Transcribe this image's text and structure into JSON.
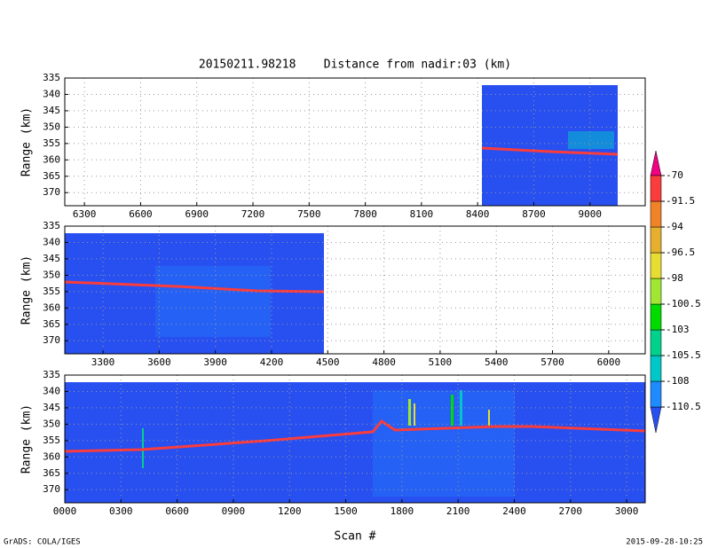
{
  "title": "20150211.98218    Distance from nadir:03 (km)",
  "x_label": "Scan #",
  "footer_left": "GrADS: COLA/IGES",
  "footer_right": "2015-09-28-10:25",
  "chart_data": [
    {
      "type": "heatmap",
      "y_label": "Range (km)",
      "xlim": [
        6195,
        9295
      ],
      "ylim": [
        335,
        374
      ],
      "xticks": [
        6300,
        6600,
        6900,
        7200,
        7500,
        7800,
        8100,
        8400,
        8700,
        9000
      ],
      "yticks": [
        335,
        340,
        345,
        350,
        355,
        360,
        365,
        370
      ],
      "grid": true
    },
    {
      "type": "heatmap",
      "y_label": "Range (km)",
      "xlim": [
        3096,
        6195
      ],
      "ylim": [
        335,
        374
      ],
      "xticks": [
        3300,
        3600,
        3900,
        4200,
        4500,
        4800,
        5100,
        5400,
        5700,
        6000
      ],
      "yticks": [
        335,
        340,
        345,
        350,
        355,
        360,
        365,
        370
      ],
      "grid": true
    },
    {
      "type": "heatmap",
      "y_label": "Range (km)",
      "xlim": [
        0,
        3099
      ],
      "ylim": [
        335,
        374
      ],
      "xticks": [
        {
          "value": 0,
          "label": "0000"
        },
        {
          "value": 300,
          "label": "0300"
        },
        {
          "value": 600,
          "label": "0600"
        },
        {
          "value": 900,
          "label": "0900"
        },
        1200,
        1500,
        1800,
        2100,
        2400,
        2700,
        3000
      ],
      "yticks": [
        335,
        340,
        345,
        350,
        355,
        360,
        365,
        370
      ],
      "grid": true
    }
  ],
  "colorbar": {
    "levels": [
      -110.5,
      -108,
      -105.5,
      -103,
      -100.5,
      -98,
      -96.5,
      -94,
      -91.5,
      -70
    ],
    "colors": [
      "#2850f0",
      "#1e8cff",
      "#00c8c8",
      "#00d28c",
      "#00dc00",
      "#a0e632",
      "#e6dc32",
      "#e6af2d",
      "#f08228",
      "#fa3c3c",
      "#f00082"
    ]
  }
}
